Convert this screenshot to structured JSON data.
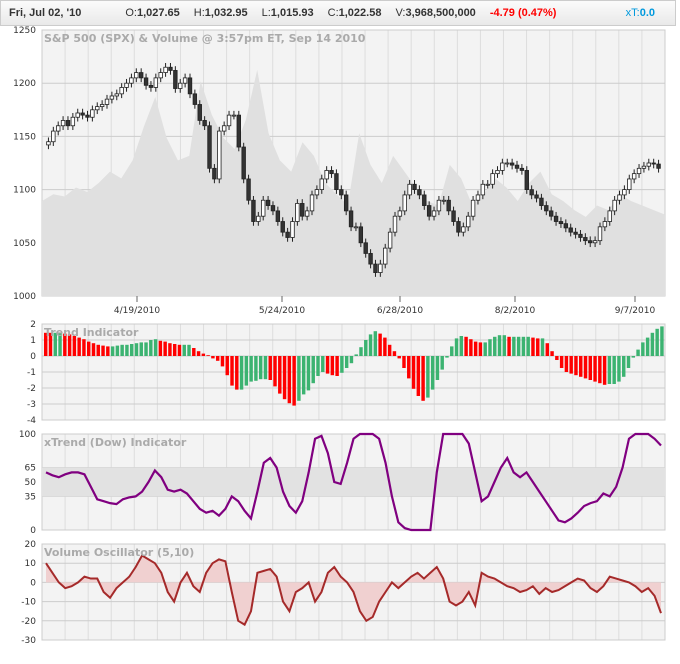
{
  "header": {
    "date": "Fri, Jul 02, '10",
    "open_label": "O:",
    "open": "1,027.65",
    "high_label": "H:",
    "high": "1,032.95",
    "low_label": "L:",
    "low": "1,015.93",
    "close_label": "C:",
    "close": "1,022.58",
    "volume_label": "V:",
    "volume": "3,968,500,000",
    "change": "-4.79 (0.47%)",
    "xt_label": "xT:",
    "xt": "0.0"
  },
  "colors": {
    "up": "#3cb371",
    "down": "#ff0000",
    "xtrend": "#800080",
    "volosc": "#a52a2a",
    "change": "#ff0000",
    "xt": "#0099dd"
  },
  "chart_data": [
    {
      "type": "candlestick",
      "title": "S&P 500 (SPX) & Volume @ 3:57pm ET, Sep 14 2010",
      "ylim": [
        1000,
        1250
      ],
      "yticks": [
        "1250",
        "1200",
        "1150",
        "1100",
        "1050",
        "1000"
      ],
      "xticks": [
        "4/19/2010",
        "5/24/2010",
        "6/28/2010",
        "8/2/2010",
        "9/7/2010"
      ],
      "close": [
        1145,
        1155,
        1160,
        1165,
        1160,
        1168,
        1172,
        1170,
        1168,
        1175,
        1178,
        1180,
        1185,
        1188,
        1190,
        1196,
        1200,
        1205,
        1210,
        1205,
        1198,
        1196,
        1205,
        1210,
        1215,
        1212,
        1195,
        1200,
        1205,
        1190,
        1180,
        1165,
        1160,
        1120,
        1110,
        1155,
        1160,
        1170,
        1170,
        1140,
        1110,
        1090,
        1070,
        1075,
        1090,
        1085,
        1080,
        1070,
        1060,
        1055,
        1070,
        1087,
        1075,
        1080,
        1095,
        1100,
        1110,
        1118,
        1115,
        1100,
        1095,
        1080,
        1065,
        1065,
        1050,
        1040,
        1030,
        1022,
        1030,
        1045,
        1060,
        1075,
        1080,
        1095,
        1105,
        1100,
        1095,
        1085,
        1075,
        1080,
        1090,
        1090,
        1080,
        1070,
        1060,
        1065,
        1075,
        1090,
        1095,
        1105,
        1105,
        1115,
        1118,
        1125,
        1125,
        1123,
        1120,
        1118,
        1100,
        1095,
        1092,
        1085,
        1080,
        1075,
        1070,
        1068,
        1064,
        1060,
        1058,
        1055,
        1052,
        1050,
        1052,
        1065,
        1070,
        1080,
        1090,
        1095,
        1100,
        1110,
        1115,
        1120,
        1122,
        1125,
        1124,
        1120
      ],
      "volume_index": [
        42,
        45,
        44,
        48,
        46,
        50,
        55,
        52,
        60,
        75,
        88,
        70,
        60,
        62,
        95,
        80,
        70,
        65,
        78,
        100,
        72,
        60,
        55,
        68,
        62,
        50,
        45,
        40,
        72,
        58,
        50,
        62,
        55,
        48,
        42,
        40,
        58,
        52,
        40,
        45,
        52,
        48,
        42,
        50,
        55,
        45,
        42,
        38,
        35,
        40,
        38,
        45,
        42,
        40,
        38,
        36
      ]
    },
    {
      "type": "bar",
      "title": "Trend Indicator",
      "ylim": [
        -4,
        2
      ],
      "yticks": [
        "2",
        "1",
        "0",
        "-1",
        "-2",
        "-3",
        "-4"
      ],
      "values": [
        1.45,
        1.45,
        1.45,
        1.45,
        1.4,
        1.35,
        1.25,
        1.15,
        1.05,
        0.9,
        0.8,
        0.7,
        0.65,
        0.6,
        0.6,
        0.65,
        0.7,
        0.7,
        0.75,
        0.8,
        0.85,
        0.85,
        1.0,
        1.05,
        0.95,
        0.9,
        0.8,
        0.75,
        0.7,
        0.7,
        0.7,
        0.5,
        0.3,
        0.15,
        0.05,
        -0.15,
        -0.3,
        -0.65,
        -1.2,
        -1.85,
        -2.1,
        -2.1,
        -1.85,
        -1.6,
        -1.55,
        -1.45,
        -1.45,
        -1.5,
        -1.9,
        -2.35,
        -2.7,
        -2.95,
        -3.1,
        -2.8,
        -2.4,
        -2.15,
        -1.7,
        -1.25,
        -1.0,
        -1.1,
        -1.2,
        -1.25,
        -1.05,
        -0.75,
        -0.45,
        0.1,
        0.55,
        1.0,
        1.35,
        1.55,
        1.4,
        1.15,
        0.7,
        0.3,
        -0.15,
        -0.75,
        -1.4,
        -2.05,
        -2.5,
        -2.8,
        -2.6,
        -2.1,
        -1.5,
        -0.85,
        -0.1,
        0.6,
        1.1,
        1.25,
        1.2,
        1.05,
        0.9,
        0.85,
        0.85,
        1.05,
        1.2,
        1.3,
        1.3,
        1.2,
        1.2,
        1.2,
        1.2,
        1.2,
        1.15,
        1.1,
        1.1,
        0.8,
        0.3,
        -0.25,
        -0.75,
        -1.0,
        -1.1,
        -1.2,
        -1.3,
        -1.4,
        -1.5,
        -1.6,
        -1.7,
        -1.8,
        -1.75,
        -1.75,
        -1.6,
        -1.3,
        -0.75,
        -0.1,
        0.4,
        0.85,
        1.15,
        1.45,
        1.7,
        1.85
      ]
    },
    {
      "type": "line",
      "title": "xTrend (Dow) Indicator",
      "ylim": [
        0,
        100
      ],
      "yticks": [
        "100",
        "65",
        "50",
        "35",
        "0"
      ],
      "band": [
        35,
        65
      ],
      "values": [
        60,
        57,
        55,
        58,
        60,
        60,
        58,
        45,
        32,
        30,
        28,
        27,
        32,
        34,
        35,
        40,
        50,
        62,
        55,
        42,
        40,
        42,
        38,
        30,
        22,
        18,
        20,
        15,
        22,
        35,
        30,
        20,
        12,
        40,
        70,
        75,
        65,
        40,
        25,
        18,
        30,
        60,
        95,
        98,
        80,
        50,
        48,
        70,
        95,
        100,
        100,
        100,
        95,
        70,
        35,
        8,
        2,
        0,
        0,
        0,
        0,
        60,
        100,
        100,
        100,
        100,
        90,
        60,
        30,
        35,
        50,
        65,
        75,
        60,
        55,
        60,
        50,
        40,
        30,
        20,
        10,
        8,
        12,
        18,
        25,
        28,
        30,
        38,
        35,
        45,
        65,
        95,
        100,
        100,
        100,
        95,
        88
      ]
    },
    {
      "type": "area",
      "title": "Volume Oscillator (5,10)",
      "ylim": [
        -30,
        20
      ],
      "yticks": [
        "20",
        "10",
        "0",
        "-10",
        "-20",
        "-30"
      ],
      "values": [
        10,
        5,
        0,
        -3,
        -2,
        0,
        3,
        2,
        2,
        -5,
        -8,
        -3,
        0,
        3,
        8,
        14,
        12,
        10,
        5,
        -5,
        -10,
        0,
        5,
        -2,
        -5,
        5,
        10,
        12,
        11,
        -5,
        -20,
        -22,
        -15,
        5,
        6,
        7,
        3,
        -10,
        -15,
        -5,
        -3,
        0,
        -10,
        -5,
        5,
        8,
        3,
        0,
        -5,
        -15,
        -20,
        -18,
        -10,
        -5,
        0,
        -3,
        0,
        3,
        5,
        2,
        5,
        8,
        2,
        -10,
        -12,
        -10,
        -5,
        -12,
        5,
        3,
        2,
        0,
        -2,
        -3,
        -5,
        -4,
        -2,
        -6,
        -3,
        -5,
        -4,
        -2,
        0,
        2,
        1,
        -3,
        -5,
        -2,
        3,
        2,
        1,
        0,
        -2,
        -5,
        -3,
        -7,
        -16
      ]
    }
  ]
}
